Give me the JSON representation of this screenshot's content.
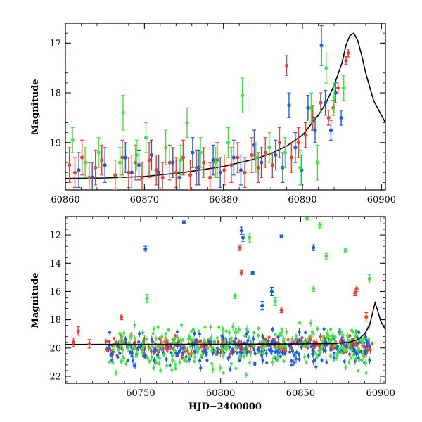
{
  "colors": {
    "red": "#e8432e",
    "blue": "#1a5ee6",
    "green": "#3ee63e",
    "model": "#000000"
  },
  "chart_data": [
    {
      "type": "scatter",
      "title": "",
      "xlabel": "",
      "ylabel": "Magnitude",
      "xlim": [
        60860,
        60900.5
      ],
      "ylim": [
        19.95,
        16.6
      ],
      "y_inverted": true,
      "xticks": [
        60860,
        60870,
        60880,
        60890,
        60900
      ],
      "xtick_labels": [
        "60860",
        "60870",
        "60880",
        "60890",
        "60900"
      ],
      "yticks": [
        17,
        18,
        19
      ],
      "ytick_labels": [
        "17",
        "18",
        "19"
      ],
      "grid": false,
      "legend": "none",
      "model_curve": {
        "x": [
          60860,
          60865,
          60870,
          60875,
          60880,
          60884,
          60886,
          60888,
          60890,
          60892,
          60893,
          60894,
          60895,
          60895.5,
          60896,
          60896.5,
          60897,
          60897.5,
          60898,
          60899,
          60900.5
        ],
        "y": [
          19.72,
          19.71,
          19.68,
          19.6,
          19.48,
          19.33,
          19.22,
          19.07,
          18.85,
          18.45,
          18.2,
          17.85,
          17.4,
          17.05,
          16.85,
          16.8,
          16.95,
          17.25,
          17.6,
          18.15,
          18.6
        ]
      },
      "series": [
        {
          "name": "",
          "color_key": "red",
          "x": [
            60860.5,
            60861.2,
            60862.1,
            60863.0,
            60863.8,
            60864.6,
            60866.3,
            60867.2,
            60868.0,
            60868.9,
            60869.7,
            60870.6,
            60871.5,
            60872.3,
            60873.2,
            60874.0,
            60874.9,
            60875.8,
            60876.6,
            60877.5,
            60878.3,
            60879.2,
            60880.1,
            60881.0,
            60881.8,
            60882.7,
            60883.6,
            60884.4,
            60885.3,
            60886.2,
            60887.1,
            60888.0,
            60888.6,
            60889.5,
            60890.4,
            60891.3,
            60892.3,
            60893.3,
            60893.9,
            60894.5,
            60895.5,
            60895.8
          ],
          "y": [
            19.45,
            19.6,
            19.3,
            19.7,
            19.5,
            19.35,
            19.65,
            19.3,
            19.6,
            19.4,
            19.7,
            19.35,
            19.55,
            19.7,
            19.4,
            19.6,
            19.3,
            19.65,
            19.5,
            19.4,
            19.7,
            19.35,
            19.55,
            19.45,
            19.3,
            19.6,
            19.25,
            19.5,
            19.2,
            19.45,
            19.0,
            17.45,
            19.3,
            19.0,
            18.85,
            18.5,
            18.2,
            18.5,
            18.3,
            17.9,
            17.35,
            17.2
          ],
          "err": [
            0.35,
            0.3,
            0.35,
            0.3,
            0.35,
            0.3,
            0.3,
            0.35,
            0.3,
            0.35,
            0.3,
            0.35,
            0.3,
            0.3,
            0.35,
            0.3,
            0.35,
            0.3,
            0.35,
            0.3,
            0.3,
            0.35,
            0.3,
            0.35,
            0.3,
            0.3,
            0.35,
            0.3,
            0.3,
            0.25,
            0.3,
            0.2,
            0.3,
            0.3,
            0.25,
            0.25,
            0.2,
            0.15,
            0.15,
            0.12,
            0.08,
            0.08
          ]
        },
        {
          "name": "",
          "color_key": "blue",
          "x": [
            60861.7,
            60863.4,
            60865.0,
            60867.6,
            60868.4,
            60869.3,
            60870.9,
            60871.8,
            60873.6,
            60874.4,
            60876.1,
            60876.9,
            60878.7,
            60879.6,
            60881.3,
            60882.2,
            60883.9,
            60884.8,
            60886.6,
            60887.5,
            60888.3,
            60889.1,
            60889.9,
            60890.7,
            60891.6,
            60892.4,
            60892.9,
            60893.6,
            60894.2,
            60894.9
          ],
          "y": [
            19.55,
            19.7,
            19.45,
            19.3,
            19.6,
            19.45,
            19.25,
            19.6,
            19.4,
            19.7,
            19.2,
            19.5,
            19.35,
            19.6,
            19.3,
            19.55,
            19.05,
            19.4,
            19.25,
            19.5,
            18.25,
            19.1,
            19.55,
            18.3,
            18.75,
            17.05,
            18.2,
            18.75,
            18.0,
            18.5
          ],
          "err": [
            0.35,
            0.3,
            0.35,
            0.3,
            0.35,
            0.3,
            0.3,
            0.35,
            0.3,
            0.35,
            0.3,
            0.35,
            0.3,
            0.3,
            0.35,
            0.3,
            0.3,
            0.3,
            0.3,
            0.3,
            0.25,
            0.3,
            0.3,
            0.25,
            0.25,
            0.4,
            0.25,
            0.2,
            0.2,
            0.15
          ]
        },
        {
          "name": "",
          "color_key": "green",
          "x": [
            60860.9,
            60862.5,
            60864.2,
            60866.9,
            60867.3,
            60869.0,
            60870.2,
            60872.7,
            60874.6,
            60875.4,
            60877.1,
            60879.0,
            60880.6,
            60882.4,
            60884.1,
            60885.8,
            60887.8,
            60889.7,
            60891.1,
            60891.9,
            60893.0,
            60894.0,
            60895.2
          ],
          "y": [
            18.95,
            19.4,
            19.2,
            19.4,
            18.4,
            19.25,
            18.9,
            19.1,
            19.35,
            18.6,
            19.2,
            19.4,
            19.0,
            18.05,
            19.3,
            19.1,
            19.2,
            19.5,
            18.3,
            19.4,
            17.5,
            18.1,
            17.9
          ],
          "err": [
            0.25,
            0.3,
            0.3,
            0.3,
            0.35,
            0.3,
            0.3,
            0.35,
            0.3,
            0.3,
            0.3,
            0.3,
            0.3,
            0.35,
            0.3,
            0.3,
            0.3,
            0.35,
            0.3,
            0.35,
            0.3,
            0.3,
            0.25
          ]
        }
      ]
    },
    {
      "type": "scatter",
      "title": "",
      "xlabel": "HJD−2400000",
      "ylabel": "Magnitude",
      "xlim": [
        60703,
        60903
      ],
      "ylim": [
        22.5,
        10.7
      ],
      "y_inverted": true,
      "xticks": [
        60750,
        60800,
        60850,
        60900
      ],
      "xtick_labels": [
        "60750",
        "60800",
        "60850",
        "60900"
      ],
      "yticks": [
        12,
        14,
        16,
        18,
        20,
        22
      ],
      "ytick_labels": [
        "12",
        "14",
        "16",
        "18",
        "20",
        "22"
      ],
      "grid": false,
      "legend": "none",
      "model_curve": {
        "x": [
          60703,
          60750,
          60800,
          60850,
          60870,
          60880,
          60886,
          60890,
          60893,
          60895,
          60896.5,
          60898,
          60900,
          60903
        ],
        "y": [
          19.75,
          19.74,
          19.73,
          19.71,
          19.68,
          19.6,
          19.4,
          19.0,
          18.4,
          17.5,
          16.8,
          17.3,
          18.1,
          18.7
        ]
      },
      "series": [
        {
          "name": "",
          "color_key": "red",
          "x": [
            60708,
            60711,
            60718,
            60738,
            60812,
            60813,
            60838,
            60884,
            60885,
            60891
          ],
          "y": [
            19.6,
            18.8,
            19.7,
            17.8,
            12.9,
            14.7,
            17.3,
            16.1,
            15.8,
            17.8
          ],
          "err": [
            0.3,
            0.3,
            0.3,
            0.2,
            0.2,
            0.2,
            0.2,
            0.2,
            0.2,
            0.3
          ],
          "band": {
            "x_start": 60728,
            "x_end": 60895,
            "center": 19.85,
            "spread": 0.45
          }
        },
        {
          "name": "",
          "color_key": "blue",
          "x": [
            60753,
            60777,
            60813,
            60814,
            60820,
            60838,
            60826,
            60858,
            60832
          ],
          "y": [
            13.0,
            11.1,
            11.7,
            12.2,
            14.7,
            12.1,
            17.0,
            12.9,
            16.0
          ],
          "err": [
            0.2,
            0.1,
            0.25,
            0.25,
            0.1,
            0.1,
            0.3,
            0.2,
            0.3
          ],
          "band": {
            "x_start": 60730,
            "x_end": 60894,
            "center": 20.05,
            "spread": 0.8
          }
        },
        {
          "name": "",
          "color_key": "green",
          "x": [
            60754,
            60809,
            60818,
            60834,
            60854,
            60858,
            60862,
            60866,
            60878,
            60893
          ],
          "y": [
            16.5,
            16.3,
            12.2,
            16.7,
            10.8,
            15.8,
            11.3,
            13.5,
            13.1,
            15.1
          ],
          "err": [
            0.3,
            0.2,
            0.3,
            0.3,
            0.15,
            0.2,
            0.2,
            0.2,
            0.15,
            0.3
          ],
          "band": {
            "x_start": 60730,
            "x_end": 60893,
            "center": 19.9,
            "spread": 1.1
          }
        }
      ]
    }
  ]
}
